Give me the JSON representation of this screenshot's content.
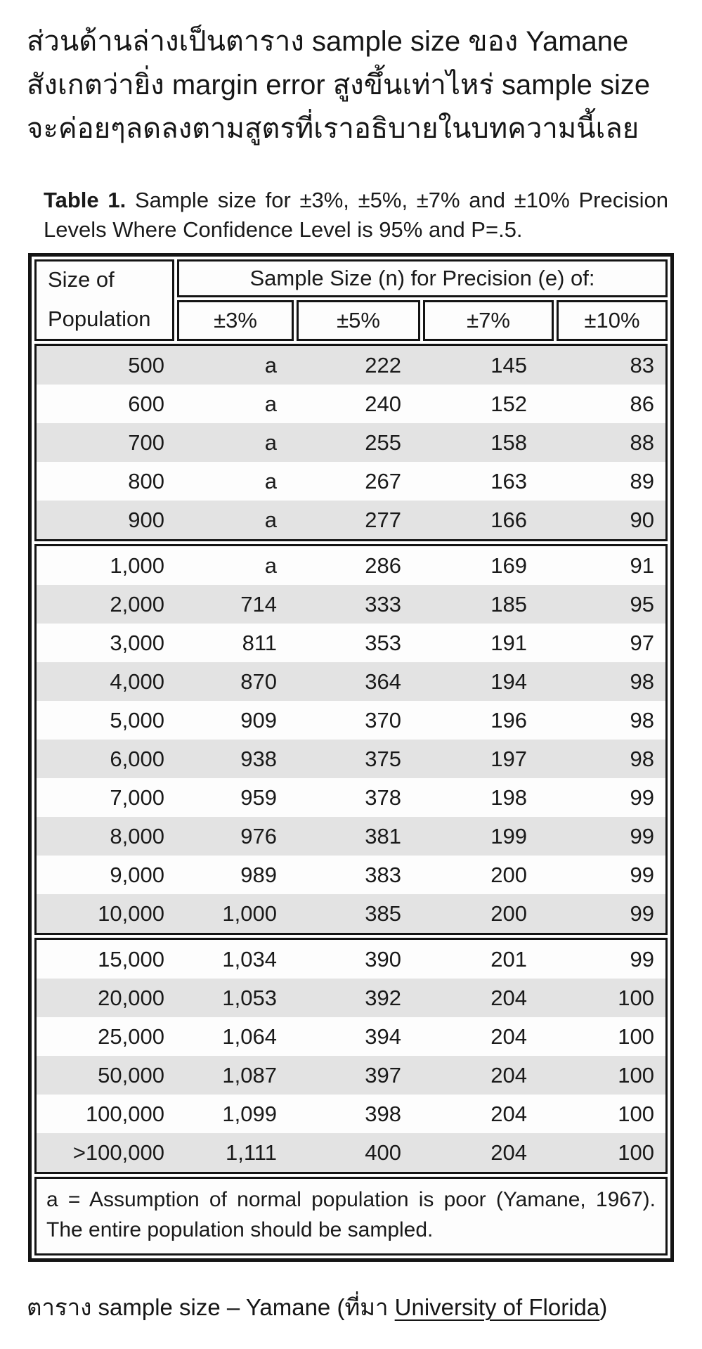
{
  "page": {
    "intro_text": "ส่วนด้านล่างเป็นตาราง sample size ของ Yamane\nสังเกตว่ายิ่ง margin error สูงขึ้นเท่าไหร่ sample size\nจะค่อยๆลดลงตามสูตรที่เราอธิบายในบทความนี้เลย",
    "caption": {
      "prefix": "ตาราง sample size – Yamane (ที่มา ",
      "link": "University of Florida",
      "suffix": ")"
    }
  },
  "table": {
    "title_label": "Table 1.",
    "title_text": "Sample size for ±3%, ±5%, ±7% and ±10% Precision Levels Where Confidence Level is 95% and P=.5.",
    "header": {
      "population_line1": "Size of",
      "population_line2": "Population",
      "span_label": "Sample Size (n) for Precision (e) of:",
      "precision_cols": [
        "±3%",
        "±5%",
        "±7%",
        "±10%"
      ]
    },
    "groups": [
      {
        "rows": [
          [
            "500",
            "a",
            "222",
            "145",
            "83"
          ],
          [
            "600",
            "a",
            "240",
            "152",
            "86"
          ],
          [
            "700",
            "a",
            "255",
            "158",
            "88"
          ],
          [
            "800",
            "a",
            "267",
            "163",
            "89"
          ],
          [
            "900",
            "a",
            "277",
            "166",
            "90"
          ]
        ]
      },
      {
        "rows": [
          [
            "1,000",
            "a",
            "286",
            "169",
            "91"
          ],
          [
            "2,000",
            "714",
            "333",
            "185",
            "95"
          ],
          [
            "3,000",
            "811",
            "353",
            "191",
            "97"
          ],
          [
            "4,000",
            "870",
            "364",
            "194",
            "98"
          ],
          [
            "5,000",
            "909",
            "370",
            "196",
            "98"
          ],
          [
            "6,000",
            "938",
            "375",
            "197",
            "98"
          ],
          [
            "7,000",
            "959",
            "378",
            "198",
            "99"
          ],
          [
            "8,000",
            "976",
            "381",
            "199",
            "99"
          ],
          [
            "9,000",
            "989",
            "383",
            "200",
            "99"
          ],
          [
            "10,000",
            "1,000",
            "385",
            "200",
            "99"
          ]
        ]
      },
      {
        "rows": [
          [
            "15,000",
            "1,034",
            "390",
            "201",
            "99"
          ],
          [
            "20,000",
            "1,053",
            "392",
            "204",
            "100"
          ],
          [
            "25,000",
            "1,064",
            "394",
            "204",
            "100"
          ],
          [
            "50,000",
            "1,087",
            "397",
            "204",
            "100"
          ],
          [
            "100,000",
            "1,099",
            "398",
            "204",
            "100"
          ],
          [
            ">100,000",
            "1,111",
            "400",
            "204",
            "100"
          ]
        ]
      }
    ],
    "footnote": "a = Assumption of normal population is poor (Yamane, 1967).  The entire population should be sampled.",
    "colors": {
      "row_shade": "#e3e3e3",
      "border": "#141414",
      "text": "#1a1a1a"
    }
  }
}
